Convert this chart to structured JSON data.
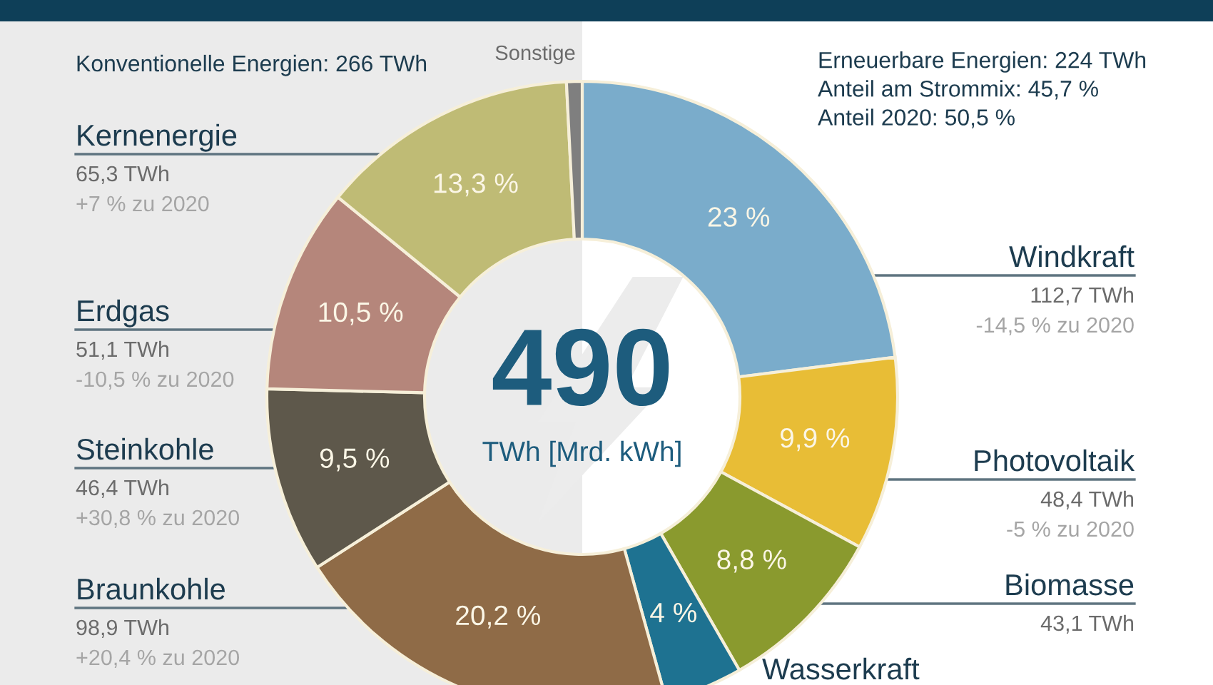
{
  "chart_data": {
    "type": "donut",
    "categories": [
      "Windkraft",
      "Photovoltaik",
      "Biomasse",
      "Wasserkraft",
      "Braunkohle",
      "Steinkohle",
      "Erdgas",
      "Kernenergie",
      "Sonstige"
    ],
    "values": [
      23,
      9.9,
      8.8,
      4,
      20.2,
      9.5,
      10.5,
      13.3,
      0.8
    ],
    "colors": [
      "#7aaccb",
      "#e8bd36",
      "#8a9a2e",
      "#1e7291",
      "#8f6b47",
      "#5e584b",
      "#b5867b",
      "#bfbb75",
      "#7f7f7f"
    ],
    "value_labels": [
      "23 %",
      "9,9 %",
      "8,8 %",
      "4 %",
      "20,2 %",
      "9,5 %",
      "10,5 %",
      "13,3 %",
      null
    ],
    "annotations": [
      "Konventionelle Energien: 266 TWh",
      "Erneuerbare Energien: 224 TWh\nAnteil am Strommix: 45,7 %\nAnteil 2020: 50,5 %",
      "490",
      "TWh [Mrd. kWh]",
      {
        "text": "112,7 TWh",
        "x": "Windkraft"
      },
      {
        "text": "-14,5 % zu 2020",
        "x": "Windkraft"
      },
      {
        "text": "48,4 TWh",
        "x": "Photovoltaik"
      },
      {
        "text": "-5 % zu 2020",
        "x": "Photovoltaik"
      },
      {
        "text": "43,1 TWh",
        "x": "Biomasse"
      },
      {
        "text": "98,9 TWh",
        "x": "Braunkohle"
      },
      {
        "text": "+20,4 % zu 2020",
        "x": "Braunkohle"
      },
      {
        "text": "46,4 TWh",
        "x": "Steinkohle"
      },
      {
        "text": "+30,8 % zu 2020",
        "x": "Steinkohle"
      },
      {
        "text": "51,1 TWh",
        "x": "Erdgas"
      },
      {
        "text": "-10,5 % zu 2020",
        "x": "Erdgas"
      },
      {
        "text": "65,3 TWh",
        "x": "Kernenergie"
      },
      {
        "text": "+7 % zu 2020",
        "x": "Kernenergie"
      }
    ]
  }
}
